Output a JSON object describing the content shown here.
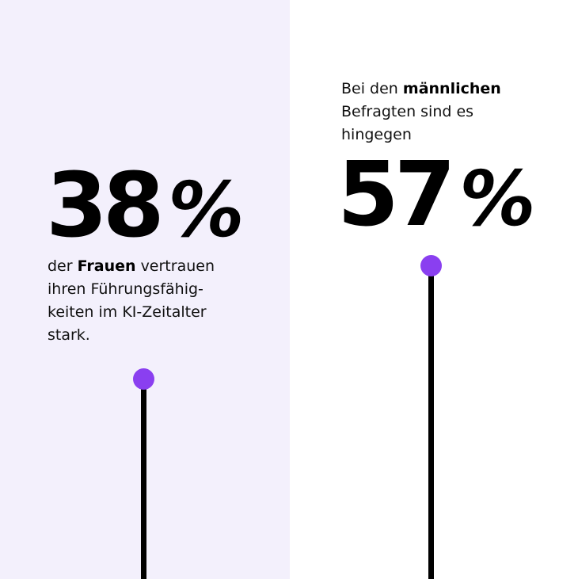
{
  "colors": {
    "left_background": "#f3f0fc",
    "right_background": "#ffffff",
    "accent": "#8a3ff0",
    "text": "#111111",
    "stem": "#000000"
  },
  "women": {
    "value": "38",
    "percent_sign": "%",
    "caption_prefix": "der",
    "caption_bold": "Frauen",
    "caption_rest_line1": "vertrauen",
    "caption_line2": "ihren Führungsfähig-",
    "caption_line3": "keiten im KI-Zeitalter",
    "caption_line4": "stark."
  },
  "men": {
    "value": "57",
    "percent_sign": "%",
    "intro_prefix": "Bei den",
    "intro_bold": "männlichen",
    "intro_line2": "Befragten sind es",
    "intro_line3": "hingegen"
  }
}
